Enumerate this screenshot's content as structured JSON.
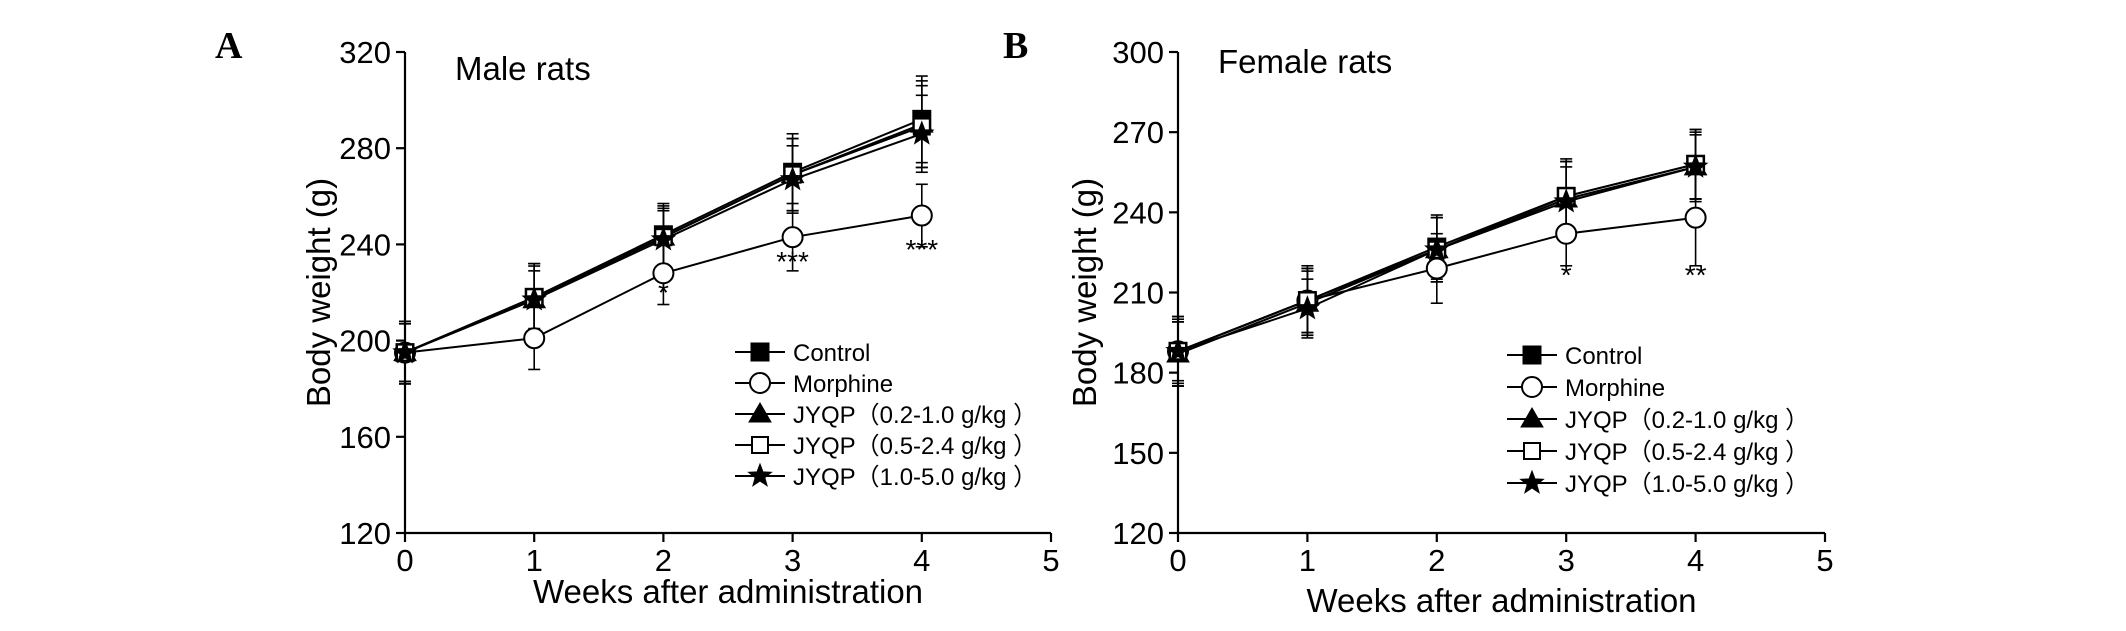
{
  "chart_data": [
    {
      "type": "line",
      "panel_label": "A",
      "title": "Male rats",
      "xlabel": "Weeks after administration",
      "ylabel": "Body weight (g)",
      "xlim": [
        0,
        5
      ],
      "ylim": [
        120,
        320
      ],
      "x_ticks": [
        0,
        1,
        2,
        3,
        4,
        5
      ],
      "y_ticks": [
        120,
        160,
        200,
        240,
        280,
        320
      ],
      "x": [
        0,
        1,
        2,
        3,
        4
      ],
      "series": [
        {
          "name": "Control",
          "marker": "filled-square",
          "values": [
            195,
            218,
            244,
            270,
            292
          ],
          "errors": [
            13,
            14,
            13,
            16,
            18
          ]
        },
        {
          "name": "Morphine",
          "marker": "open-circle",
          "values": [
            195,
            201,
            228,
            243,
            252
          ],
          "errors": [
            13,
            13,
            13,
            14,
            13
          ]
        },
        {
          "name": "JYQP（0.2-1.0 g/kg ）",
          "marker": "filled-triangle",
          "values": [
            195,
            217,
            243,
            269,
            290
          ],
          "errors": [
            12,
            14,
            12,
            15,
            18
          ]
        },
        {
          "name": "JYQP（0.5-2.4 g/kg ）",
          "marker": "open-square",
          "values": [
            195,
            218,
            243,
            269,
            289
          ],
          "errors": [
            12,
            14,
            13,
            15,
            17
          ]
        },
        {
          "name": "JYQP（1.0-5.0 g/kg ）",
          "marker": "filled-star",
          "values": [
            195,
            217,
            242,
            267,
            286
          ],
          "errors": [
            12,
            12,
            12,
            14,
            16
          ]
        }
      ],
      "annotations": [
        {
          "x": 2,
          "y": 216,
          "text": "*"
        },
        {
          "x": 3,
          "y": 229,
          "text": "***"
        },
        {
          "x": 4,
          "y": 234,
          "text": "***"
        }
      ],
      "legend_position": "bottom-right"
    },
    {
      "type": "line",
      "panel_label": "B",
      "title": "Female rats",
      "xlabel": "Weeks after administration",
      "ylabel": "Body weight (g)",
      "xlim": [
        0,
        5
      ],
      "ylim": [
        120,
        300
      ],
      "x_ticks": [
        0,
        1,
        2,
        3,
        4,
        5
      ],
      "y_ticks": [
        120,
        150,
        180,
        210,
        240,
        270,
        300
      ],
      "x": [
        0,
        1,
        2,
        3,
        4
      ],
      "series": [
        {
          "name": "Control",
          "marker": "filled-square",
          "values": [
            188,
            207,
            227,
            246,
            258
          ],
          "errors": [
            13,
            13,
            12,
            14,
            13
          ]
        },
        {
          "name": "Morphine",
          "marker": "open-circle",
          "values": [
            188,
            207,
            219,
            232,
            238
          ],
          "errors": [
            13,
            12,
            13,
            12,
            18
          ]
        },
        {
          "name": "JYQP（0.2-1.0 g/kg ）",
          "marker": "filled-triangle",
          "values": [
            187,
            206,
            226,
            245,
            257
          ],
          "errors": [
            12,
            12,
            12,
            14,
            13
          ]
        },
        {
          "name": "JYQP（0.5-2.4 g/kg ）",
          "marker": "open-square",
          "values": [
            188,
            207,
            226,
            246,
            258
          ],
          "errors": [
            12,
            12,
            12,
            13,
            13
          ]
        },
        {
          "name": "JYQP（1.0-5.0 g/kg ）",
          "marker": "filled-star",
          "values": [
            188,
            204,
            226,
            244,
            257
          ],
          "errors": [
            11,
            11,
            12,
            13,
            12
          ]
        }
      ],
      "annotations": [
        {
          "x": 3,
          "y": 213,
          "text": "*"
        },
        {
          "x": 4,
          "y": 213,
          "text": "**"
        }
      ],
      "legend_position": "bottom-right"
    }
  ]
}
